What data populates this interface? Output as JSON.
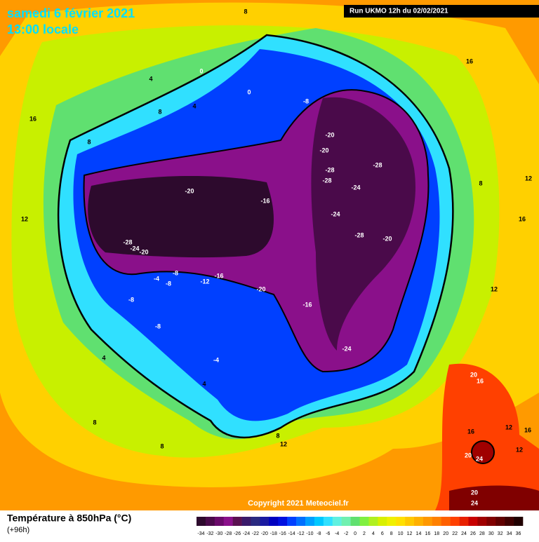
{
  "header": {
    "title": "samedi 6 février 2021",
    "subtitle": "13:00 locale",
    "run": "Run UKMO 12h du 02/02/2021"
  },
  "footer": {
    "copyright": "Copyright 2021 Meteociel.fr",
    "variable": "Température à 850hPa (°C)",
    "lead": "(+96h)"
  },
  "map": {
    "labels": [
      -20,
      -20,
      -20,
      -28,
      -28,
      -28,
      -24,
      -24,
      -28,
      -20,
      -20,
      -16,
      -28,
      -24,
      -20,
      -16,
      -12,
      -8,
      -8,
      -4,
      -8,
      -8,
      -16,
      -24,
      -8,
      -4,
      0,
      0,
      4,
      8,
      4,
      8,
      16,
      12,
      8,
      16,
      16,
      12,
      12,
      8,
      16,
      12,
      20,
      16,
      16,
      12,
      20,
      24,
      20,
      24,
      4,
      4,
      8,
      8,
      8,
      12
    ]
  },
  "legend": {
    "ticks": [
      -34,
      -32,
      -30,
      -28,
      -26,
      -24,
      -22,
      -20,
      -18,
      -16,
      -14,
      -12,
      -10,
      -8,
      -6,
      -4,
      -2,
      0,
      2,
      4,
      6,
      8,
      10,
      12,
      14,
      16,
      18,
      20,
      22,
      24,
      26,
      28,
      30,
      32,
      34,
      36
    ],
    "colors": [
      "#2d0a2d",
      "#4a0a4a",
      "#6a0a6a",
      "#8a108a",
      "#5a1050",
      "#3a1a6a",
      "#2a2a80",
      "#1a1aa0",
      "#0000c0",
      "#0010e0",
      "#0040ff",
      "#0070ff",
      "#00a0ff",
      "#00c8ff",
      "#30e0ff",
      "#60f0e0",
      "#70f0b0",
      "#60e070",
      "#80f040",
      "#b0f020",
      "#d8f000",
      "#f0f000",
      "#ffe000",
      "#ffc800",
      "#ffb000",
      "#ff9800",
      "#ff8000",
      "#ff6000",
      "#ff4000",
      "#e82000",
      "#c80000",
      "#a00000",
      "#800000",
      "#600000",
      "#400000",
      "#200000"
    ]
  }
}
